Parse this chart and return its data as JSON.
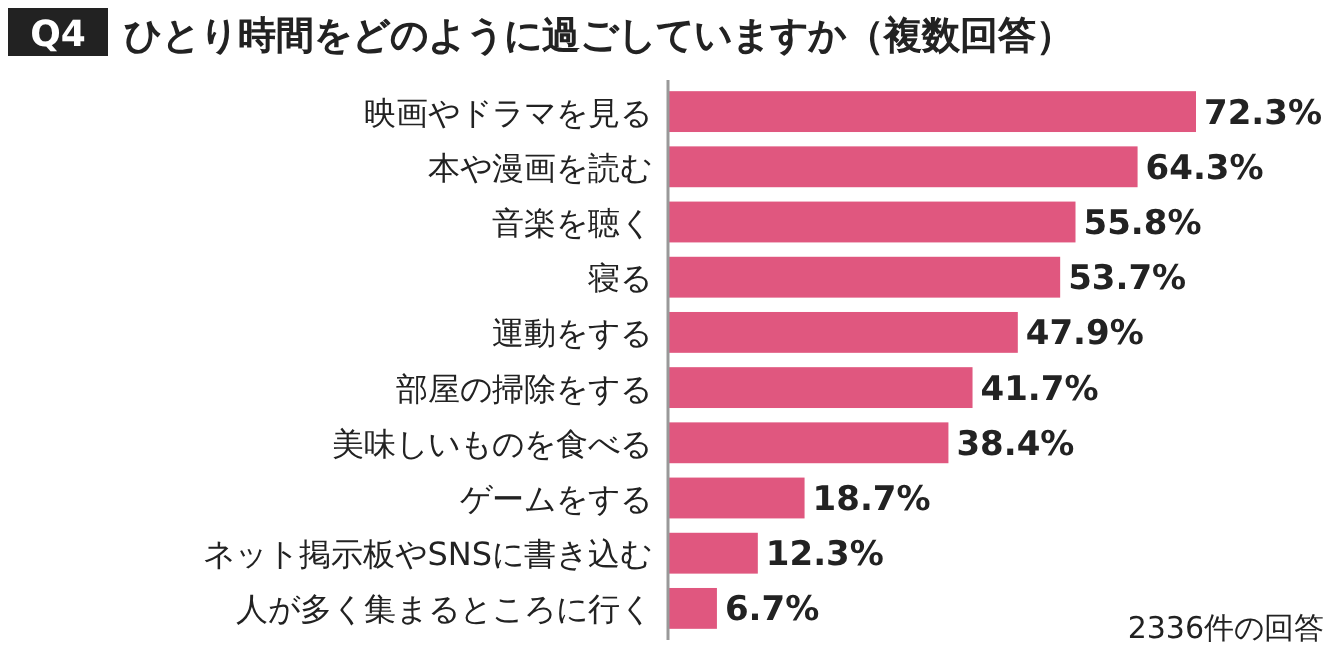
{
  "chart_data": {
    "type": "bar",
    "orientation": "horizontal",
    "title": "Q4",
    "subtitle": "ひとり時間をどのように過ごしていますか（複数回答）",
    "categories": [
      "映画やドラマを見る",
      "本や漫画を読む",
      "音楽を聴く",
      "寝る",
      "運動をする",
      "部屋の掃除をする",
      "美味しいものを食べる",
      "ゲームをする",
      "ネット掲示板やSNSに書き込む",
      "人が多く集まるところに行く"
    ],
    "values": [
      72.3,
      64.3,
      55.8,
      53.7,
      47.9,
      41.7,
      38.4,
      18.7,
      12.3,
      6.7
    ],
    "value_labels": [
      "72.3%",
      "64.3%",
      "55.8%",
      "53.7%",
      "47.9%",
      "41.7%",
      "38.4%",
      "18.7%",
      "12.3%",
      "6.7%"
    ],
    "color": "#e0577f",
    "annotations": [
      "2336件の回答"
    ]
  }
}
